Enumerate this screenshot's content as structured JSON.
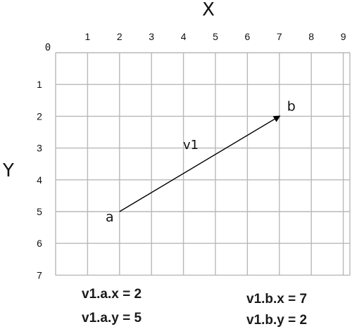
{
  "axes": {
    "x_title": "X",
    "y_title": "Y",
    "origin_label": "0",
    "x_ticks": [
      "1",
      "2",
      "3",
      "4",
      "5",
      "6",
      "7",
      "8",
      "9"
    ],
    "y_ticks": [
      "1",
      "2",
      "3",
      "4",
      "5",
      "6",
      "7"
    ],
    "x_range": [
      0,
      9
    ],
    "y_range": [
      0,
      7
    ],
    "y_direction": "down",
    "grid": true,
    "grid_color": "#b8b8b8"
  },
  "vector": {
    "name": "v1",
    "start": {
      "label": "a",
      "x": 2,
      "y": 5
    },
    "end": {
      "label": "b",
      "x": 7,
      "y": 2
    },
    "color": "#000000"
  },
  "notes": {
    "a_x": "v1.a.x = 2",
    "a_y": "v1.a.y = 5",
    "b_x": "v1.b.x = 7",
    "b_y": "v1.b.y = 2"
  }
}
